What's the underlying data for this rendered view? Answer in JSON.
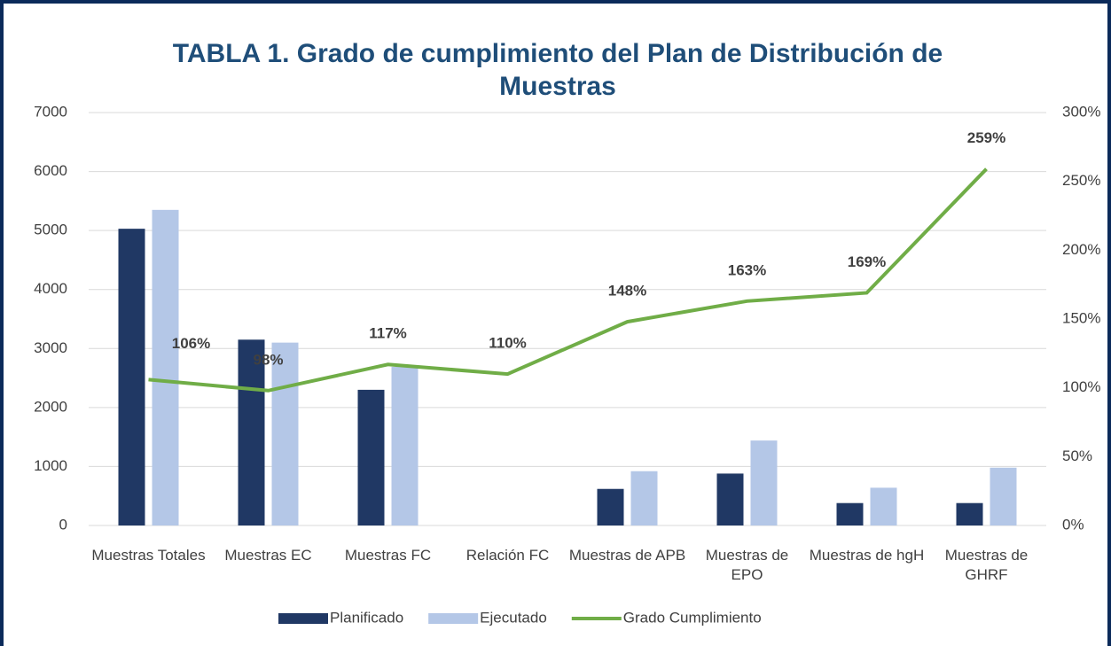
{
  "chart_data": {
    "type": "bar_line",
    "title": "TABLA 1. Grado de cumplimiento del Plan de Distribución de Muestras",
    "categories": [
      "Muestras Totales",
      "Muestras EC",
      "Muestras FC",
      "Relación FC",
      "Muestras de APB",
      "Muestras de EPO",
      "Muestras de hgH",
      "Muestras de GHRF"
    ],
    "series": [
      {
        "name": "Planificado",
        "type": "bar",
        "color": "#203864",
        "values": [
          5030,
          3150,
          2300,
          0,
          620,
          880,
          380,
          380
        ]
      },
      {
        "name": "Ejecutado",
        "type": "bar",
        "color": "#b4c7e7",
        "values": [
          5350,
          3100,
          2690,
          0,
          920,
          1440,
          640,
          980
        ]
      },
      {
        "name": "Grado Cumplimiento",
        "type": "line",
        "axis": "y2",
        "color": "#70ad47",
        "values": [
          106,
          98,
          117,
          110,
          148,
          163,
          169,
          259
        ],
        "value_labels": [
          "106%",
          "98%",
          "117%",
          "110%",
          "148%",
          "163%",
          "169%",
          "259%"
        ]
      }
    ],
    "ylim": [
      0,
      7000
    ],
    "yticks": [
      0,
      1000,
      2000,
      3000,
      4000,
      5000,
      6000,
      7000
    ],
    "y2lim": [
      0,
      300
    ],
    "y2ticks": [
      {
        "value": 0,
        "label": "0%"
      },
      {
        "value": 50,
        "label": "50%"
      },
      {
        "value": 100,
        "label": "100%"
      },
      {
        "value": 150,
        "label": "150%"
      },
      {
        "value": 200,
        "label": "200%"
      },
      {
        "value": 250,
        "label": "250%"
      },
      {
        "value": 300,
        "label": "300%"
      }
    ],
    "grid": true,
    "legend": "bottom"
  }
}
